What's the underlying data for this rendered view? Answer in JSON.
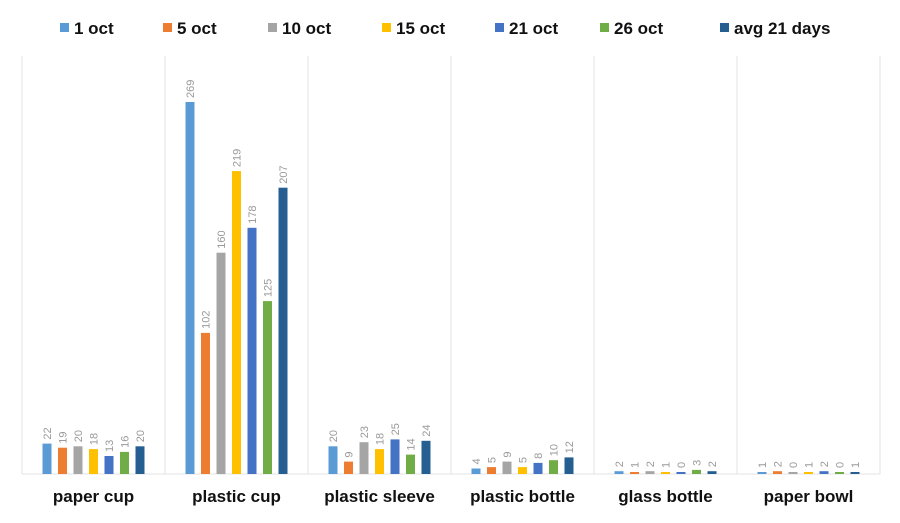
{
  "chart_data": {
    "type": "bar",
    "title": "",
    "xlabel": "",
    "ylabel": "",
    "ylim": [
      0,
      290
    ],
    "grid": false,
    "legend_position": "top",
    "categories": [
      "paper cup",
      "plastic cup",
      "plastic sleeve",
      "plastic bottle",
      "glass bottle",
      "paper bowl"
    ],
    "series": [
      {
        "name": "1 oct",
        "color": "#5b9bd5",
        "values": [
          22,
          269,
          20,
          4,
          2,
          1
        ]
      },
      {
        "name": "5 oct",
        "color": "#ed7d31",
        "values": [
          19,
          102,
          9,
          5,
          1,
          2
        ]
      },
      {
        "name": "10 oct",
        "color": "#a5a5a5",
        "values": [
          20,
          160,
          23,
          9,
          2,
          0
        ]
      },
      {
        "name": "15 oct",
        "color": "#ffc000",
        "values": [
          18,
          219,
          18,
          5,
          1,
          1
        ]
      },
      {
        "name": "21 oct",
        "color": "#4472c4",
        "values": [
          13,
          178,
          25,
          8,
          0,
          2
        ]
      },
      {
        "name": "26 oct",
        "color": "#70ad47",
        "values": [
          16,
          125,
          14,
          10,
          3,
          0
        ]
      },
      {
        "name": "avg 21 days",
        "color": "#255e91",
        "values": [
          20,
          207,
          24,
          12,
          2,
          1
        ]
      }
    ]
  }
}
